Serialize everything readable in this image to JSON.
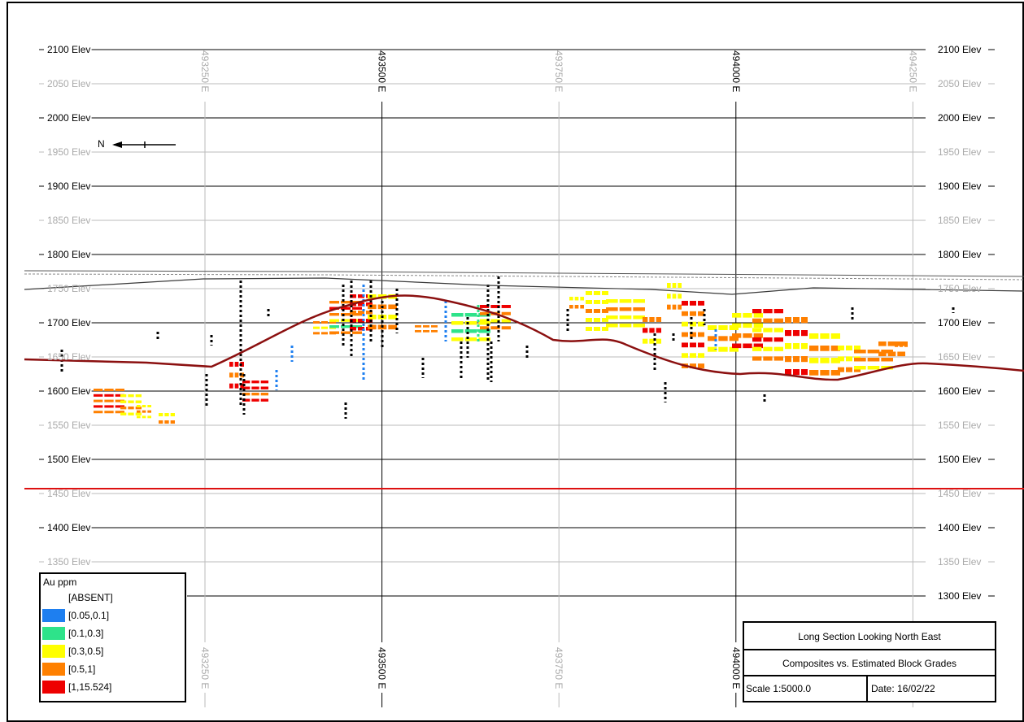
{
  "elevation_labels": [
    "2100 Elev",
    "2050 Elev",
    "2000 Elev",
    "1950 Elev",
    "1900 Elev",
    "1850 Elev",
    "1800 Elev",
    "1750 Elev",
    "1700 Elev",
    "1650 Elev",
    "1600 Elev",
    "1550 Elev",
    "1500 Elev",
    "1450 Elev",
    "1400 Elev",
    "1350 Elev",
    "1300 Elev"
  ],
  "easting_labels": [
    "493250 E",
    "493500 E",
    "493750 E",
    "494000 E",
    "494250 E"
  ],
  "north_arrow": {
    "label": "N"
  },
  "legend": {
    "title": "Au ppm",
    "items": [
      {
        "label": "[ABSENT]",
        "color": "#ffffff"
      },
      {
        "label": "[0.05,0.1]",
        "color": "#1e7ff0"
      },
      {
        "label": "[0.1,0.3]",
        "color": "#2ee38a"
      },
      {
        "label": "[0.3,0.5]",
        "color": "#ffff00"
      },
      {
        "label": "[0.5,1]",
        "color": "#ff8000"
      },
      {
        "label": "[1,15.524]",
        "color": "#ee0000"
      }
    ]
  },
  "title_block": {
    "title": "Long Section Looking North East",
    "subtitle": "Composites vs. Estimated Block Grades",
    "scale": "Scale 1:5000.0",
    "date": "Date: 16/02/22"
  },
  "colors": {
    "topography": "#3a3a3a",
    "surface_line": "#8b1010",
    "reference_line": "#dd1111",
    "drillhole": "#000000"
  }
}
